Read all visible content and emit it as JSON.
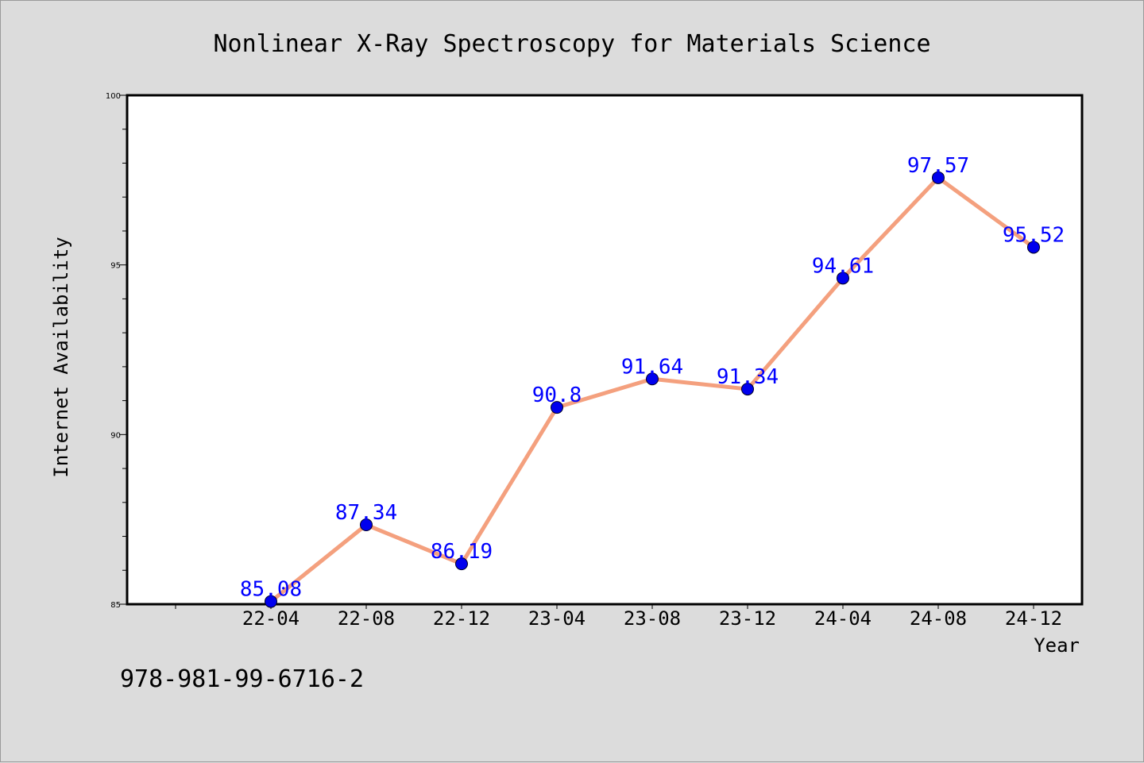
{
  "chart_data": {
    "type": "line",
    "title": "Nonlinear X-Ray Spectroscopy for Materials Science",
    "xlabel": "Year",
    "ylabel": "Internet Availability",
    "categories": [
      "22-04",
      "22-08",
      "22-12",
      "23-04",
      "23-08",
      "23-12",
      "24-04",
      "24-08",
      "24-12"
    ],
    "series": [
      {
        "values": [
          85.08,
          87.34,
          86.19,
          90.8,
          91.64,
          91.34,
          94.61,
          97.57,
          95.52
        ],
        "labels": [
          "85.08",
          "87.34",
          "86.19",
          "90.8",
          "91.64",
          "91.34",
          "94.61",
          "97.57",
          "95.52"
        ]
      }
    ],
    "ylim": [
      85,
      100
    ],
    "yticks": [
      85,
      90,
      95,
      100
    ],
    "ytick_labels": [
      "85",
      "90",
      "95",
      "100"
    ],
    "grid": false,
    "line_color": "#f4a07e",
    "marker_color": "#0000ee",
    "label_color": "#0000ff",
    "plot_background": "#ffffff",
    "figure_background": "#dcdcdc"
  },
  "footer": {
    "isbn": "978-981-99-6716-2"
  }
}
